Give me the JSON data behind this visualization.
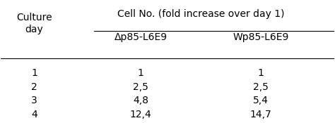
{
  "header_top": "Cell No. (fold increase over day 1)",
  "col0_header": "Culture\nday",
  "col1_header": "Δp85-L6E9",
  "col2_header": "Wp85-L6E9",
  "rows": [
    [
      "1",
      "1",
      "1"
    ],
    [
      "2",
      "2,5",
      "2,5"
    ],
    [
      "3",
      "4,8",
      "5,4"
    ],
    [
      "4",
      "12,4",
      "14,7"
    ]
  ],
  "bg_color": "#ffffff",
  "text_color": "#000000",
  "font_size": 10,
  "header_font_size": 10
}
